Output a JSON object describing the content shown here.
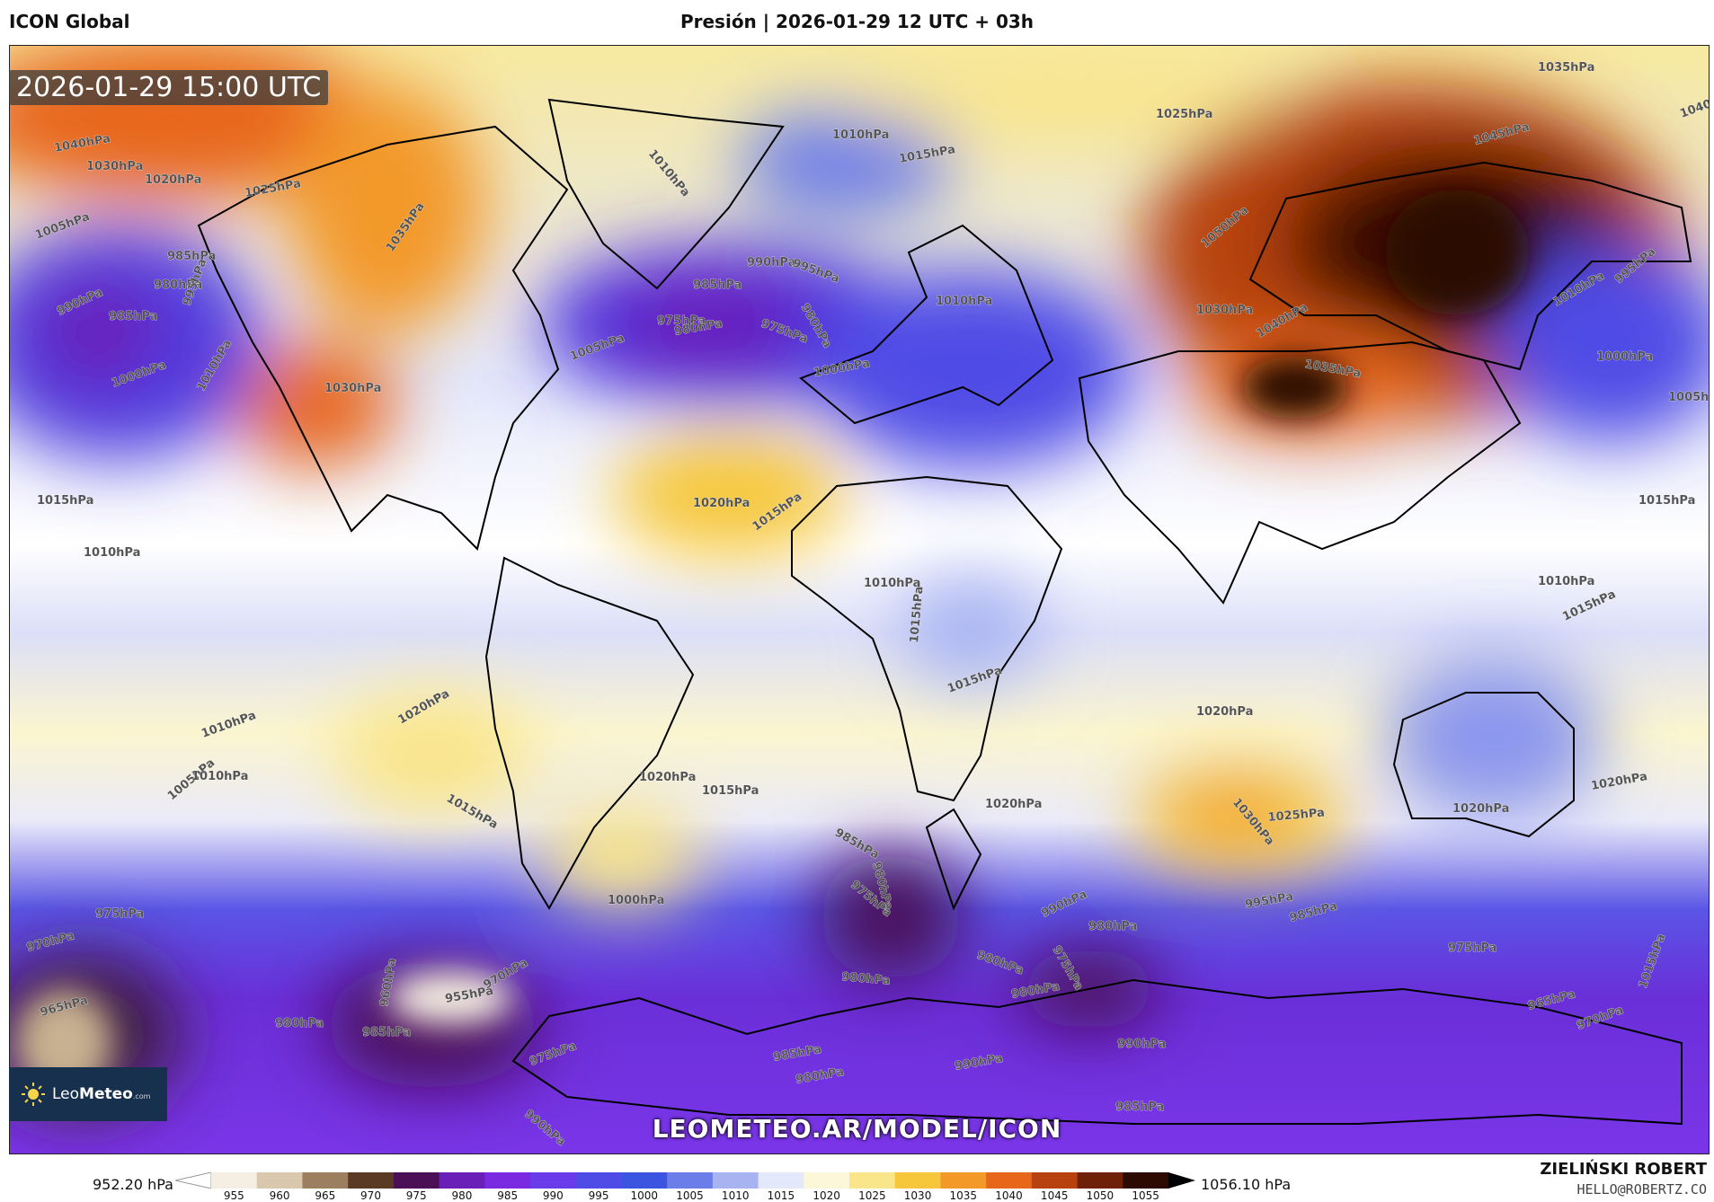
{
  "header": {
    "model_title": "ICON Global",
    "chart_title": "Presión | 2026-01-29 12 UTC + 03h"
  },
  "map": {
    "timestamp": "2026-01-29 15:00 UTC",
    "site_url": "LEOMETEO.AR/MODEL/ICON",
    "logo": {
      "text_light": "Leo",
      "text_bold": "Meteo",
      "suffix": ".com",
      "icon": "sun-icon"
    },
    "isobar_labels": [
      "1035hPa",
      "1040hPa",
      "1045hPa",
      "1040hPa",
      "1030hPa",
      "1020hPa",
      "1025hPa",
      "1005hPa",
      "985hPa",
      "980hPa",
      "990hPa",
      "985hPa",
      "995hPa",
      "1000hPa",
      "1010hPa",
      "1035hPa",
      "1030hPa",
      "1025hPa",
      "1010hPa",
      "1010hPa",
      "1015hPa",
      "990hPa",
      "995hPa",
      "985hPa",
      "975hPa",
      "980hPa",
      "975hPa",
      "980hPa",
      "1005hPa",
      "1000hPa",
      "1010hPa",
      "1030hPa",
      "1050hPa",
      "1040hPa",
      "1035hPa",
      "995hPa",
      "1010hPa",
      "1000hPa",
      "1005hPa",
      "1015hPa",
      "1015hPa",
      "1020hPa",
      "1015hPa",
      "1010hPa",
      "1010hPa",
      "1015hPa",
      "1015hPa",
      "1010hPa",
      "1020hPa",
      "1015hPa",
      "1020hPa",
      "1010hPa",
      "1005hPa",
      "1015hPa",
      "1020hPa",
      "1015hPa",
      "1030hPa",
      "1025hPa",
      "1020hPa",
      "1020hPa",
      "1020hPa",
      "1010hPa",
      "985hPa",
      "980hPa",
      "975hPa",
      "1000hPa",
      "990hPa",
      "980hPa",
      "995hPa",
      "985hPa",
      "975hPa",
      "980hPa",
      "975hPa",
      "980hPa",
      "970hPa",
      "970hPa",
      "975hPa",
      "965hPa",
      "955hPa",
      "960hPa",
      "970hPa",
      "965hPa",
      "980hPa",
      "985hPa",
      "985hPa",
      "975hPa",
      "980hPa",
      "990hPa",
      "990hPa",
      "985hPa",
      "990hPa",
      "980hPa",
      "1015hPa"
    ]
  },
  "colorbar": {
    "min_label": "952.20 hPa",
    "max_label": "1056.10 hPa",
    "ticks": [
      "955",
      "960",
      "965",
      "970",
      "975",
      "980",
      "985",
      "990",
      "995",
      "1000",
      "1005",
      "1010",
      "1015",
      "1020",
      "1025",
      "1030",
      "1035",
      "1040",
      "1045",
      "1050",
      "1055"
    ],
    "colors": [
      "#f5eee2",
      "#d9c8ad",
      "#9c7f5e",
      "#5a3a24",
      "#4a0f55",
      "#6a1fb8",
      "#7a2ae0",
      "#6a3be8",
      "#4f4be6",
      "#3b55e0",
      "#6b7de8",
      "#a8b4f2",
      "#e4e8fb",
      "#fbf7d8",
      "#f9e58a",
      "#f6c73b",
      "#f3992a",
      "#e8661a",
      "#b8420f",
      "#6e2108",
      "#2c0a02"
    ]
  },
  "footer": {
    "author": "ZIELIŃSKI ROBERT",
    "email": "HELLO@ROBERTZ.CO"
  }
}
